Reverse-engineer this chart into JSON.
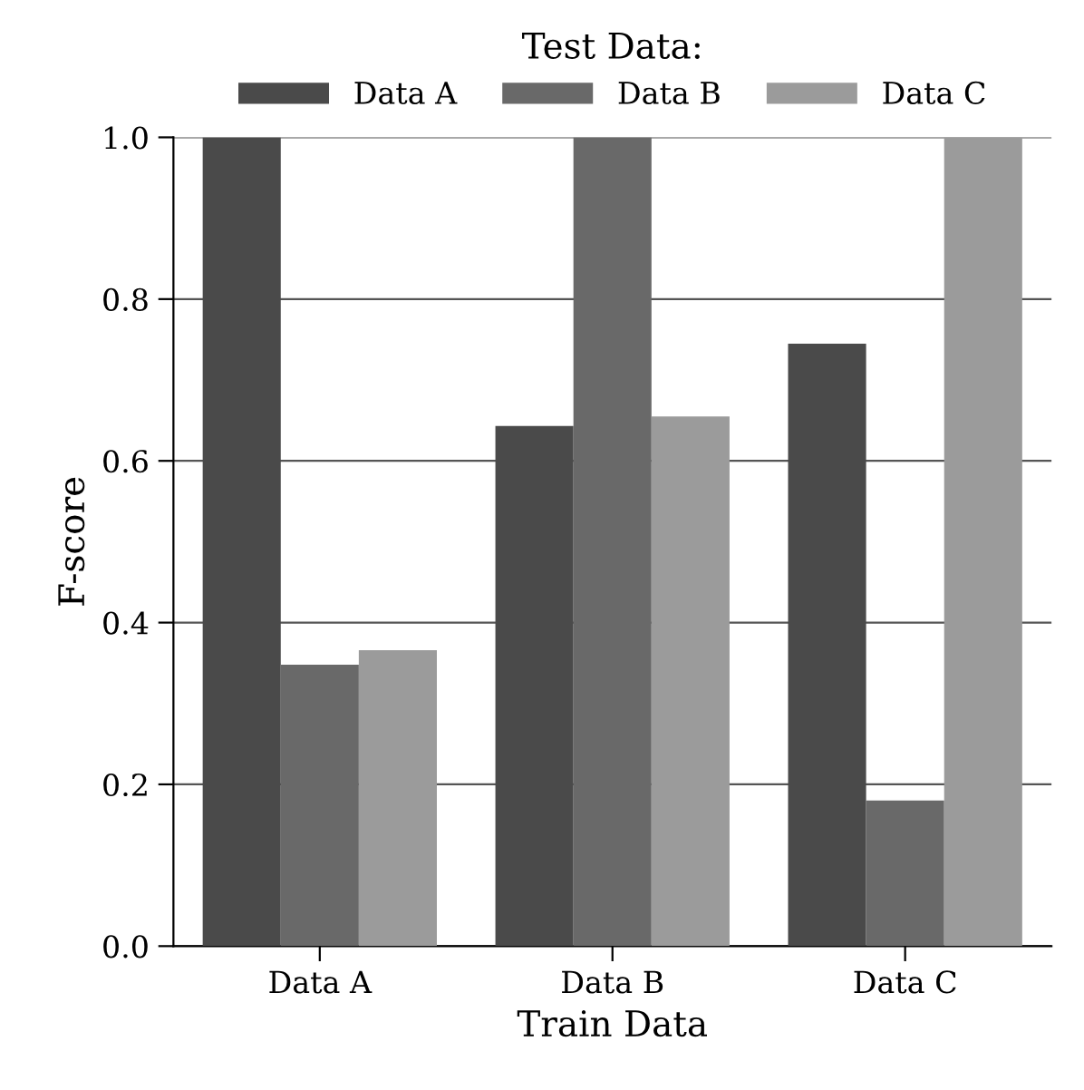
{
  "chart_data": {
    "type": "bar",
    "xlabel": "Train Data",
    "ylabel": "F-score",
    "legend_title": "Test Data:",
    "categories": [
      "Data A",
      "Data B",
      "Data C"
    ],
    "series": [
      {
        "name": "Data A",
        "color": "#4a4a4a",
        "values": [
          1.0,
          0.643,
          0.745
        ]
      },
      {
        "name": "Data B",
        "color": "#696969",
        "values": [
          0.348,
          1.0,
          0.18
        ]
      },
      {
        "name": "Data C",
        "color": "#9b9b9b",
        "values": [
          0.366,
          0.655,
          1.0
        ]
      }
    ],
    "ylim": [
      0,
      1.0
    ],
    "yticks": [
      {
        "value": 0,
        "label": "0.0"
      },
      {
        "value": 0.2,
        "label": "0.2"
      },
      {
        "value": 0.4,
        "label": "0.4"
      },
      {
        "value": 0.6,
        "label": "0.6"
      },
      {
        "value": 0.8,
        "label": "0.8"
      },
      {
        "value": 1.0,
        "label": "1.0"
      }
    ],
    "grid": "y",
    "legend": "top"
  }
}
